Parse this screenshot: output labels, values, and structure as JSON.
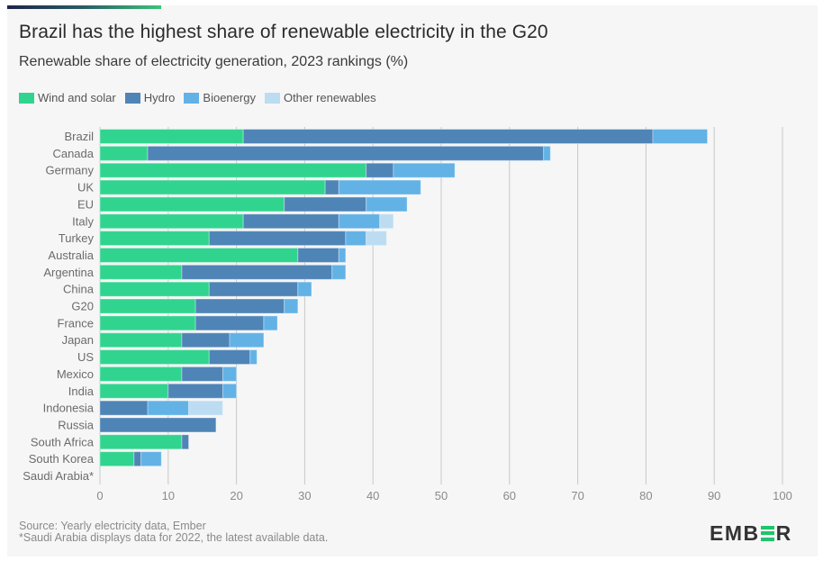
{
  "header": {
    "title": "Brazil has the highest share of renewable electricity in the G20",
    "subtitle": "Renewable share of electricity generation, 2023 rankings (%)"
  },
  "colors": {
    "wind_and_solar": "#31d48f",
    "hydro": "#4f84b6",
    "bioenergy": "#62b2e6",
    "other_renewables": "#bcdcf2",
    "gridline": "#c8c8c8",
    "axis_text": "#8a8a8a",
    "label_text": "#6b6b6b",
    "brand_green": "#20c46b"
  },
  "footer": {
    "source": "Source: Yearly electricity data, Ember",
    "note": "*Saudi Arabia displays data for 2022, the latest available data."
  },
  "logo": {
    "before": "EMB",
    "after": "R"
  },
  "chart_data": {
    "type": "bar",
    "orientation": "horizontal",
    "stacked": true,
    "title": "Brazil has the highest share of renewable electricity in the G20",
    "subtitle": "Renewable share of electricity generation, 2023 rankings (%)",
    "xlabel": "",
    "ylabel": "",
    "xlim": [
      0,
      100
    ],
    "xticks": [
      0,
      10,
      20,
      30,
      40,
      50,
      60,
      70,
      80,
      90,
      100
    ],
    "grid": true,
    "legend_position": "top-left",
    "categories": [
      "Brazil",
      "Canada",
      "Germany",
      "UK",
      "EU",
      "Italy",
      "Turkey",
      "Australia",
      "Argentina",
      "China",
      "G20",
      "France",
      "Japan",
      "US",
      "Mexico",
      "India",
      "Indonesia",
      "Russia",
      "South Africa",
      "South Korea",
      "Saudi Arabia*"
    ],
    "series": [
      {
        "name": "Wind and solar",
        "key": "wind_and_solar",
        "values": [
          21,
          7,
          39,
          33,
          27,
          21,
          16,
          29,
          12,
          16,
          14,
          14,
          12,
          16,
          12,
          10,
          0,
          0,
          12,
          5,
          0
        ]
      },
      {
        "name": "Hydro",
        "key": "hydro",
        "values": [
          60,
          58,
          4,
          2,
          12,
          14,
          20,
          6,
          22,
          13,
          13,
          10,
          7,
          6,
          6,
          8,
          7,
          17,
          1,
          1,
          0
        ]
      },
      {
        "name": "Bioenergy",
        "key": "bioenergy",
        "values": [
          8,
          1,
          9,
          12,
          6,
          6,
          3,
          1,
          2,
          2,
          2,
          2,
          5,
          1,
          2,
          2,
          6,
          0,
          0,
          3,
          0
        ]
      },
      {
        "name": "Other renewables",
        "key": "other_renewables",
        "values": [
          0,
          0,
          0,
          0,
          0,
          2,
          3,
          0,
          0,
          0,
          0,
          0,
          0,
          0,
          0,
          0,
          5,
          0,
          0,
          0,
          0
        ]
      }
    ]
  }
}
